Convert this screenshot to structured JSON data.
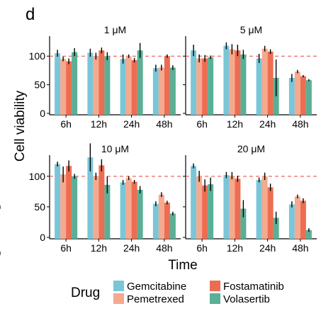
{
  "panel_label": "d",
  "legend": {
    "title": "Drug",
    "entries": [
      {
        "name": "Gemcitabine",
        "color": "#79c6d8"
      },
      {
        "name": "Fostamatinib",
        "color": "#ec6d52"
      },
      {
        "name": "Pemetrexed",
        "color": "#f5a98e"
      },
      {
        "name": "Volasertib",
        "color": "#5aaf95"
      }
    ]
  },
  "edge_marks": [
    "0",
    "0"
  ],
  "chart_data": {
    "type": "bar",
    "ylabel": "Cell viability",
    "xlabel": "Time",
    "categories": [
      "6h",
      "12h",
      "24h",
      "48h"
    ],
    "ylim": [
      0,
      130
    ],
    "yticks": [
      0,
      50,
      100
    ],
    "reference_line": 100,
    "series_order": [
      "Gemcitabine",
      "Pemetrexed",
      "Fostamatinib",
      "Volasertib"
    ],
    "series_colors": [
      "#79c6d8",
      "#f5a98e",
      "#ec6d52",
      "#5aaf95"
    ],
    "facets": [
      {
        "title": "1 μM",
        "series": [
          {
            "name": "Gemcitabine",
            "values": [
              105,
              106,
              95,
              79
            ],
            "errors": [
              6,
              7,
              8,
              6
            ]
          },
          {
            "name": "Pemetrexed",
            "values": [
              95,
              100,
              100,
              80
            ],
            "errors": [
              4,
              6,
              3,
              5
            ]
          },
          {
            "name": "Fostamatinib",
            "values": [
              91,
              110,
              93,
              100
            ],
            "errors": [
              5,
              5,
              4,
              3
            ]
          },
          {
            "name": "Volasertib",
            "values": [
              107,
              100,
              110,
              80
            ],
            "errors": [
              7,
              7,
              13,
              4
            ]
          }
        ]
      },
      {
        "title": "5 μM",
        "series": [
          {
            "name": "Gemcitabine",
            "values": [
              110,
              118,
              96,
              62
            ],
            "errors": [
              10,
              6,
              8,
              7
            ]
          },
          {
            "name": "Pemetrexed",
            "values": [
              96,
              112,
              113,
              73
            ],
            "errors": [
              7,
              9,
              5,
              3
            ]
          },
          {
            "name": "Fostamatinib",
            "values": [
              96,
              110,
              108,
              65
            ],
            "errors": [
              6,
              10,
              4,
              2
            ]
          },
          {
            "name": "Volasertib",
            "values": [
              98,
              103,
              62,
              58
            ],
            "errors": [
              3,
              8,
              32,
              2
            ]
          }
        ]
      },
      {
        "title": "10 μM",
        "series": [
          {
            "name": "Gemcitabine",
            "values": [
              120,
              131,
              90,
              55
            ],
            "errors": [
              4,
              23,
              4,
              4
            ]
          },
          {
            "name": "Pemetrexed",
            "values": [
              103,
              100,
              97,
              70
            ],
            "errors": [
              13,
              6,
              3,
              4
            ]
          },
          {
            "name": "Fostamatinib",
            "values": [
              117,
              118,
              91,
              57
            ],
            "errors": [
              9,
              10,
              3,
              3
            ]
          },
          {
            "name": "Volasertib",
            "values": [
              100,
              86,
              78,
              39
            ],
            "errors": [
              4,
              14,
              6,
              3
            ]
          }
        ]
      },
      {
        "title": "20 μM",
        "series": [
          {
            "name": "Gemcitabine",
            "values": [
              117,
              102,
              94,
              54
            ],
            "errors": [
              4,
              5,
              4,
              5
            ]
          },
          {
            "name": "Pemetrexed",
            "values": [
              100,
              101,
              100,
              67
            ],
            "errors": [
              9,
              6,
              6,
              3
            ]
          },
          {
            "name": "Fostamatinib",
            "values": [
              85,
              96,
              82,
              60
            ],
            "errors": [
              10,
              5,
              6,
              4
            ]
          },
          {
            "name": "Volasertib",
            "values": [
              87,
              47,
              32,
              12
            ],
            "errors": [
              11,
              14,
              10,
              3
            ]
          }
        ]
      }
    ]
  }
}
